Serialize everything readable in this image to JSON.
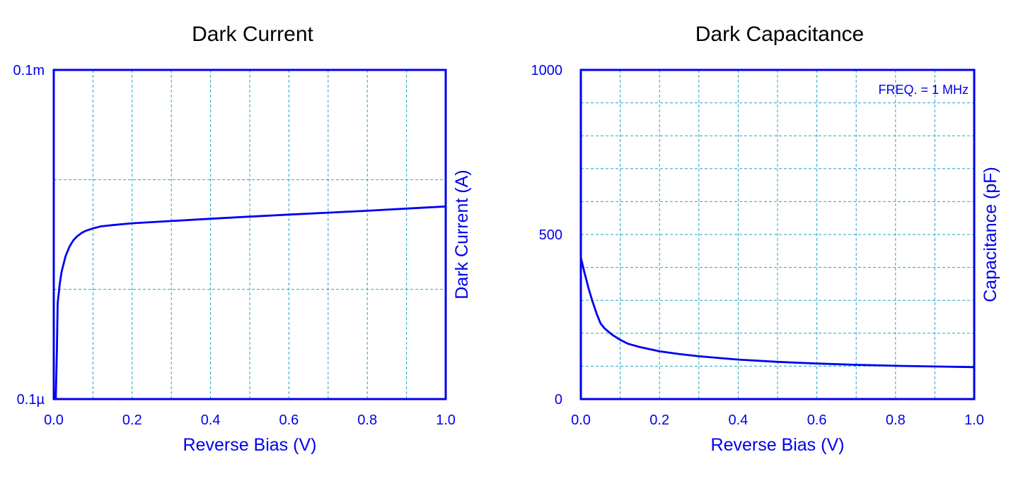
{
  "colors": {
    "axis": "#0000ee",
    "grid": "#1fa6c4",
    "curve": "#0000ee",
    "title": "#000000"
  },
  "chart_data": [
    {
      "type": "line",
      "title": "Dark Current",
      "xlabel": "Reverse Bias (V)",
      "ylabel": "Dark Current (A)",
      "ylabel_position": "right",
      "xlim": [
        0.0,
        1.0
      ],
      "ylim": [
        1e-07,
        0.0001
      ],
      "yscale": "log",
      "grid": true,
      "x_ticks": [
        "0.0",
        "0.2",
        "0.4",
        "0.6",
        "0.8",
        "1.0"
      ],
      "y_ticks": [
        {
          "value": 1e-07,
          "label": "0.1µ"
        },
        {
          "value": 0.0001,
          "label": "0.1m"
        }
      ],
      "series": [
        {
          "x": [
            0.0,
            0.005,
            0.008,
            0.01,
            0.015,
            0.02,
            0.03,
            0.04,
            0.05,
            0.06,
            0.07,
            0.08,
            0.1,
            0.12,
            0.15,
            0.2,
            0.3,
            0.4,
            0.5,
            0.6,
            0.7,
            0.8,
            0.9,
            1.0
          ],
          "y": [
            1e-07,
            1e-07,
            2.7e-07,
            7.5e-07,
            1.1e-06,
            1.45e-06,
            2e-06,
            2.45e-06,
            2.8e-06,
            3.05e-06,
            3.25e-06,
            3.4e-06,
            3.6e-06,
            3.75e-06,
            3.85e-06,
            4e-06,
            4.2e-06,
            4.4e-06,
            4.6e-06,
            4.8e-06,
            5e-06,
            5.2e-06,
            5.45e-06,
            5.7e-06
          ]
        }
      ]
    },
    {
      "type": "line",
      "title": "Dark Capacitance",
      "xlabel": "Reverse Bias (V)",
      "ylabel": "Capacitance (pF)",
      "ylabel_position": "right",
      "xlim": [
        0.0,
        1.0
      ],
      "ylim": [
        0,
        1000
      ],
      "grid": true,
      "x_ticks": [
        "0.0",
        "0.2",
        "0.4",
        "0.6",
        "0.8",
        "1.0"
      ],
      "y_ticks": [
        {
          "value": 0,
          "label": "0"
        },
        {
          "value": 500,
          "label": "500"
        },
        {
          "value": 1000,
          "label": "1000"
        }
      ],
      "annotation": "FREQ. = 1 MHz",
      "series": [
        {
          "x": [
            0.0,
            0.01,
            0.02,
            0.03,
            0.04,
            0.05,
            0.06,
            0.07,
            0.08,
            0.1,
            0.12,
            0.15,
            0.2,
            0.25,
            0.3,
            0.4,
            0.5,
            0.6,
            0.7,
            0.8,
            0.9,
            1.0
          ],
          "y": [
            430,
            380,
            335,
            295,
            260,
            230,
            215,
            205,
            195,
            180,
            168,
            158,
            145,
            137,
            130,
            120,
            113,
            108,
            104,
            101,
            99,
            97
          ]
        }
      ]
    }
  ]
}
